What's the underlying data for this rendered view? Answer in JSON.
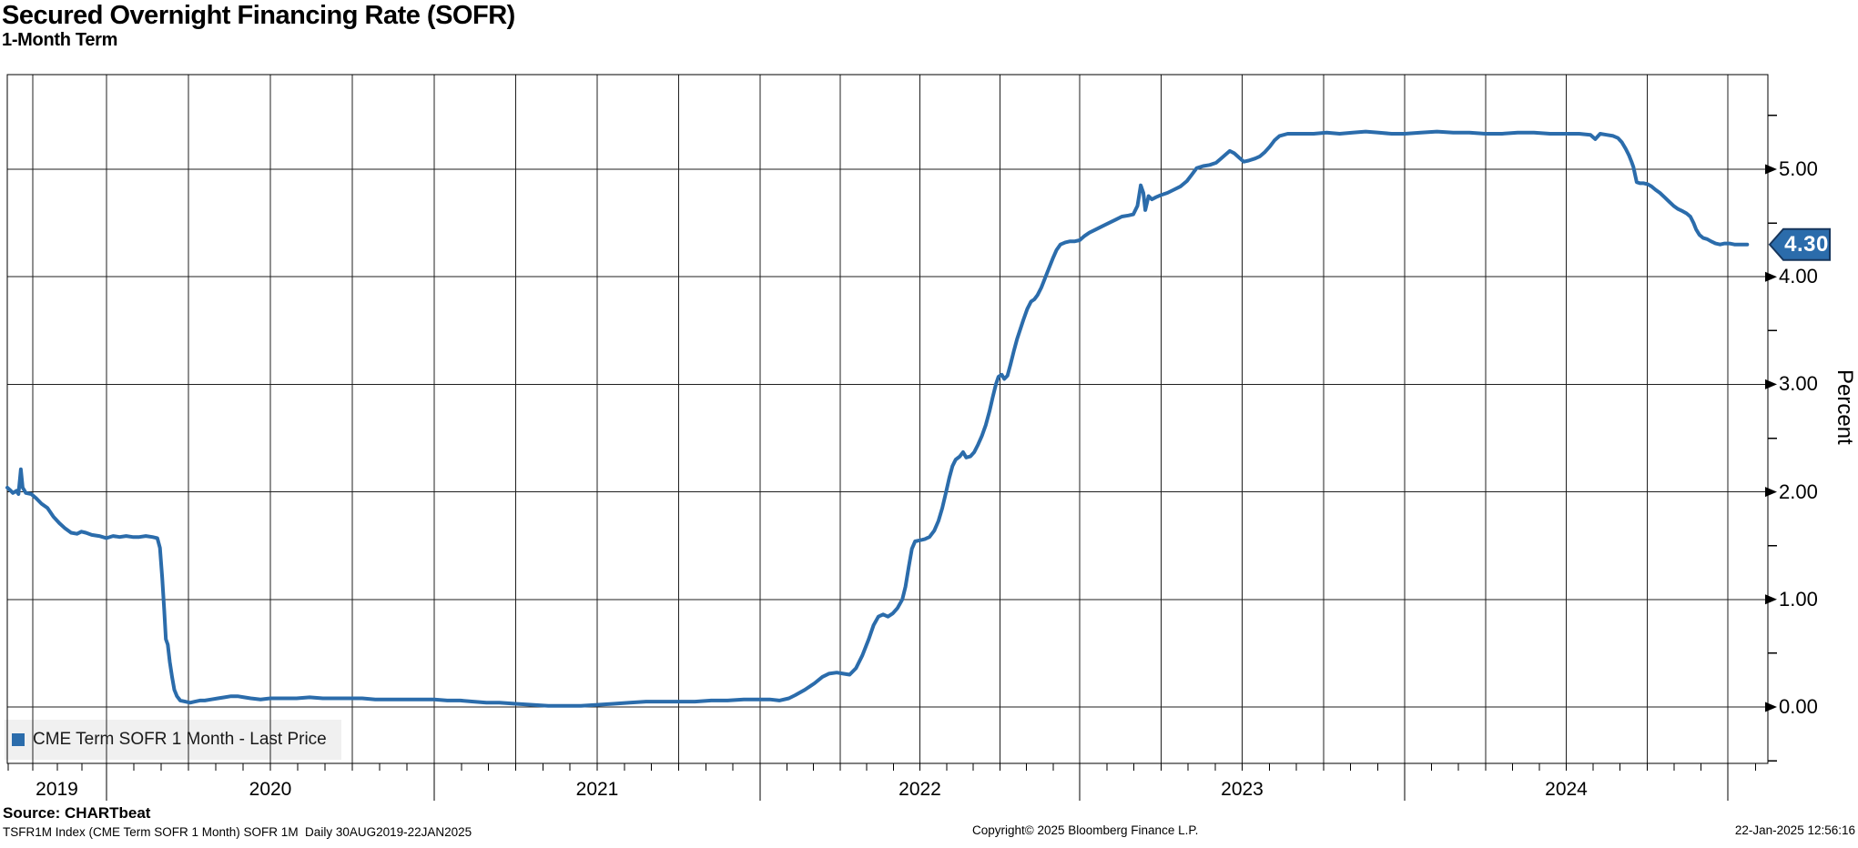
{
  "header": {
    "title": "Secured Overnight Financing Rate (SOFR)",
    "subtitle": "1-Month Term"
  },
  "legend": {
    "label": "CME Term SOFR 1 Month - Last Price"
  },
  "y_axis": {
    "title": "Percent",
    "tick_labels": [
      "5.00",
      "4.00",
      "3.00",
      "2.00",
      "1.00",
      "0.00"
    ],
    "tick_values": [
      5,
      4,
      3,
      2,
      1,
      0
    ],
    "minor_tick_values": [
      -0.5,
      0.5,
      1.5,
      2.5,
      3.5,
      4.5,
      5.5
    ]
  },
  "x_axis": {
    "year_labels": [
      "2019",
      "2020",
      "2021",
      "2022",
      "2023",
      "2024"
    ]
  },
  "last_price": {
    "label": "4.30",
    "value": 4.3
  },
  "colors": {
    "line": "#2b6cab",
    "tag_fill": "#2b6cab",
    "tag_border": "#17365c",
    "grid": "#1f1f1f",
    "frame": "#000000",
    "legend_bg": "#f0f0f0"
  },
  "footer": {
    "source": "Source: CHARTbeat",
    "ticker_line": "TSFR1M Index (CME Term SOFR 1 Month) SOFR 1M  Daily 30AUG2019-22JAN2025",
    "copyright": "Copyright© 2025 Bloomberg Finance L.P.",
    "timestamp": "22-Jan-2025 12:56:16"
  },
  "chart_data": {
    "type": "line",
    "title": "Secured Overnight Financing Rate (SOFR)",
    "subtitle": "1-Month Term",
    "xlabel": "",
    "ylabel": "Percent",
    "x_range": [
      "2019-08-30",
      "2025-01-22"
    ],
    "ylim": [
      -0.5,
      5.9
    ],
    "grid": {
      "horizontal_step": 1.0,
      "vertical": "quarterly"
    },
    "legend_position": "bottom-left",
    "last_price": 4.3,
    "series": [
      {
        "name": "CME Term SOFR 1 Month - Last Price",
        "color": "#2b6cab",
        "points": [
          [
            2019.664,
            2.04
          ],
          [
            2019.672,
            2.02
          ],
          [
            2019.683,
            1.99
          ],
          [
            2019.695,
            2.01
          ],
          [
            2019.702,
            1.98
          ],
          [
            2019.71,
            2.21
          ],
          [
            2019.716,
            2.04
          ],
          [
            2019.727,
            1.99
          ],
          [
            2019.745,
            1.98
          ],
          [
            2019.762,
            1.94
          ],
          [
            2019.78,
            1.89
          ],
          [
            2019.8,
            1.85
          ],
          [
            2019.82,
            1.77
          ],
          [
            2019.84,
            1.71
          ],
          [
            2019.86,
            1.66
          ],
          [
            2019.88,
            1.62
          ],
          [
            2019.9,
            1.61
          ],
          [
            2019.915,
            1.63
          ],
          [
            2019.93,
            1.62
          ],
          [
            2019.95,
            1.6
          ],
          [
            2019.975,
            1.59
          ],
          [
            2020.0,
            1.57
          ],
          [
            2020.02,
            1.59
          ],
          [
            2020.04,
            1.58
          ],
          [
            2020.06,
            1.59
          ],
          [
            2020.08,
            1.58
          ],
          [
            2020.1,
            1.58
          ],
          [
            2020.12,
            1.59
          ],
          [
            2020.14,
            1.58
          ],
          [
            2020.155,
            1.57
          ],
          [
            2020.163,
            1.48
          ],
          [
            2020.17,
            1.2
          ],
          [
            2020.176,
            0.9
          ],
          [
            2020.181,
            0.63
          ],
          [
            2020.187,
            0.58
          ],
          [
            2020.193,
            0.42
          ],
          [
            2020.2,
            0.28
          ],
          [
            2020.207,
            0.16
          ],
          [
            2020.215,
            0.1
          ],
          [
            2020.225,
            0.06
          ],
          [
            2020.24,
            0.05
          ],
          [
            2020.255,
            0.04
          ],
          [
            2020.27,
            0.05
          ],
          [
            2020.285,
            0.06
          ],
          [
            2020.3,
            0.06
          ],
          [
            2020.32,
            0.07
          ],
          [
            2020.34,
            0.08
          ],
          [
            2020.36,
            0.09
          ],
          [
            2020.38,
            0.1
          ],
          [
            2020.4,
            0.1
          ],
          [
            2020.42,
            0.09
          ],
          [
            2020.44,
            0.08
          ],
          [
            2020.47,
            0.07
          ],
          [
            2020.5,
            0.08
          ],
          [
            2020.54,
            0.08
          ],
          [
            2020.58,
            0.08
          ],
          [
            2020.62,
            0.09
          ],
          [
            2020.66,
            0.08
          ],
          [
            2020.7,
            0.08
          ],
          [
            2020.74,
            0.08
          ],
          [
            2020.78,
            0.08
          ],
          [
            2020.82,
            0.07
          ],
          [
            2020.86,
            0.07
          ],
          [
            2020.9,
            0.07
          ],
          [
            2020.95,
            0.07
          ],
          [
            2021.0,
            0.07
          ],
          [
            2021.04,
            0.06
          ],
          [
            2021.08,
            0.06
          ],
          [
            2021.12,
            0.05
          ],
          [
            2021.16,
            0.04
          ],
          [
            2021.2,
            0.04
          ],
          [
            2021.25,
            0.03
          ],
          [
            2021.3,
            0.02
          ],
          [
            2021.35,
            0.01
          ],
          [
            2021.4,
            0.01
          ],
          [
            2021.45,
            0.01
          ],
          [
            2021.5,
            0.02
          ],
          [
            2021.55,
            0.03
          ],
          [
            2021.6,
            0.04
          ],
          [
            2021.65,
            0.05
          ],
          [
            2021.7,
            0.05
          ],
          [
            2021.75,
            0.05
          ],
          [
            2021.8,
            0.05
          ],
          [
            2021.85,
            0.06
          ],
          [
            2021.9,
            0.06
          ],
          [
            2021.95,
            0.07
          ],
          [
            2022.0,
            0.07
          ],
          [
            2022.03,
            0.07
          ],
          [
            2022.06,
            0.06
          ],
          [
            2022.09,
            0.08
          ],
          [
            2022.11,
            0.11
          ],
          [
            2022.14,
            0.16
          ],
          [
            2022.17,
            0.22
          ],
          [
            2022.195,
            0.28
          ],
          [
            2022.215,
            0.31
          ],
          [
            2022.24,
            0.32
          ],
          [
            2022.26,
            0.31
          ],
          [
            2022.28,
            0.3
          ],
          [
            2022.3,
            0.36
          ],
          [
            2022.32,
            0.48
          ],
          [
            2022.34,
            0.63
          ],
          [
            2022.355,
            0.76
          ],
          [
            2022.37,
            0.84
          ],
          [
            2022.385,
            0.86
          ],
          [
            2022.4,
            0.84
          ],
          [
            2022.415,
            0.87
          ],
          [
            2022.43,
            0.92
          ],
          [
            2022.445,
            1.0
          ],
          [
            2022.455,
            1.12
          ],
          [
            2022.465,
            1.3
          ],
          [
            2022.475,
            1.47
          ],
          [
            2022.485,
            1.54
          ],
          [
            2022.5,
            1.55
          ],
          [
            2022.515,
            1.56
          ],
          [
            2022.53,
            1.58
          ],
          [
            2022.545,
            1.64
          ],
          [
            2022.558,
            1.73
          ],
          [
            2022.57,
            1.85
          ],
          [
            2022.582,
            2.0
          ],
          [
            2022.592,
            2.13
          ],
          [
            2022.602,
            2.24
          ],
          [
            2022.612,
            2.3
          ],
          [
            2022.625,
            2.33
          ],
          [
            2022.635,
            2.37
          ],
          [
            2022.645,
            2.32
          ],
          [
            2022.658,
            2.33
          ],
          [
            2022.67,
            2.37
          ],
          [
            2022.682,
            2.44
          ],
          [
            2022.694,
            2.52
          ],
          [
            2022.706,
            2.62
          ],
          [
            2022.718,
            2.75
          ],
          [
            2022.728,
            2.88
          ],
          [
            2022.738,
            3.0
          ],
          [
            2022.746,
            3.07
          ],
          [
            2022.756,
            3.09
          ],
          [
            2022.764,
            3.05
          ],
          [
            2022.774,
            3.08
          ],
          [
            2022.784,
            3.19
          ],
          [
            2022.794,
            3.31
          ],
          [
            2022.804,
            3.42
          ],
          [
            2022.814,
            3.51
          ],
          [
            2022.824,
            3.6
          ],
          [
            2022.836,
            3.7
          ],
          [
            2022.848,
            3.77
          ],
          [
            2022.858,
            3.79
          ],
          [
            2022.868,
            3.83
          ],
          [
            2022.88,
            3.9
          ],
          [
            2022.892,
            3.99
          ],
          [
            2022.904,
            4.08
          ],
          [
            2022.916,
            4.17
          ],
          [
            2022.928,
            4.25
          ],
          [
            2022.94,
            4.3
          ],
          [
            2022.955,
            4.32
          ],
          [
            2022.97,
            4.33
          ],
          [
            2022.985,
            4.33
          ],
          [
            2023.0,
            4.34
          ],
          [
            2023.015,
            4.38
          ],
          [
            2023.03,
            4.41
          ],
          [
            2023.05,
            4.44
          ],
          [
            2023.07,
            4.47
          ],
          [
            2023.09,
            4.5
          ],
          [
            2023.11,
            4.53
          ],
          [
            2023.13,
            4.56
          ],
          [
            2023.15,
            4.57
          ],
          [
            2023.165,
            4.58
          ],
          [
            2023.178,
            4.66
          ],
          [
            2023.188,
            4.85
          ],
          [
            2023.196,
            4.78
          ],
          [
            2023.202,
            4.62
          ],
          [
            2023.212,
            4.75
          ],
          [
            2023.222,
            4.72
          ],
          [
            2023.235,
            4.74
          ],
          [
            2023.25,
            4.76
          ],
          [
            2023.27,
            4.78
          ],
          [
            2023.29,
            4.81
          ],
          [
            2023.31,
            4.84
          ],
          [
            2023.33,
            4.89
          ],
          [
            2023.345,
            4.95
          ],
          [
            2023.36,
            5.01
          ],
          [
            2023.38,
            5.03
          ],
          [
            2023.4,
            5.04
          ],
          [
            2023.42,
            5.06
          ],
          [
            2023.435,
            5.1
          ],
          [
            2023.45,
            5.14
          ],
          [
            2023.462,
            5.17
          ],
          [
            2023.475,
            5.15
          ],
          [
            2023.49,
            5.11
          ],
          [
            2023.505,
            5.07
          ],
          [
            2023.52,
            5.08
          ],
          [
            2023.54,
            5.1
          ],
          [
            2023.555,
            5.12
          ],
          [
            2023.57,
            5.16
          ],
          [
            2023.585,
            5.21
          ],
          [
            2023.6,
            5.27
          ],
          [
            2023.615,
            5.31
          ],
          [
            2023.64,
            5.33
          ],
          [
            2023.68,
            5.33
          ],
          [
            2023.72,
            5.33
          ],
          [
            2023.76,
            5.34
          ],
          [
            2023.8,
            5.33
          ],
          [
            2023.84,
            5.34
          ],
          [
            2023.88,
            5.35
          ],
          [
            2023.92,
            5.34
          ],
          [
            2023.96,
            5.33
          ],
          [
            2024.0,
            5.33
          ],
          [
            2024.05,
            5.34
          ],
          [
            2024.1,
            5.35
          ],
          [
            2024.15,
            5.34
          ],
          [
            2024.2,
            5.34
          ],
          [
            2024.25,
            5.33
          ],
          [
            2024.3,
            5.33
          ],
          [
            2024.35,
            5.34
          ],
          [
            2024.4,
            5.34
          ],
          [
            2024.45,
            5.33
          ],
          [
            2024.5,
            5.33
          ],
          [
            2024.54,
            5.33
          ],
          [
            2024.575,
            5.32
          ],
          [
            2024.59,
            5.28
          ],
          [
            2024.605,
            5.33
          ],
          [
            2024.625,
            5.32
          ],
          [
            2024.645,
            5.31
          ],
          [
            2024.66,
            5.29
          ],
          [
            2024.672,
            5.25
          ],
          [
            2024.684,
            5.19
          ],
          [
            2024.694,
            5.13
          ],
          [
            2024.702,
            5.07
          ],
          [
            2024.708,
            5.02
          ],
          [
            2024.713,
            4.95
          ],
          [
            2024.718,
            4.88
          ],
          [
            2024.728,
            4.87
          ],
          [
            2024.74,
            4.87
          ],
          [
            2024.752,
            4.86
          ],
          [
            2024.764,
            4.84
          ],
          [
            2024.776,
            4.81
          ],
          [
            2024.79,
            4.78
          ],
          [
            2024.804,
            4.74
          ],
          [
            2024.818,
            4.7
          ],
          [
            2024.832,
            4.66
          ],
          [
            2024.846,
            4.63
          ],
          [
            2024.86,
            4.61
          ],
          [
            2024.872,
            4.59
          ],
          [
            2024.884,
            4.56
          ],
          [
            2024.894,
            4.5
          ],
          [
            2024.902,
            4.44
          ],
          [
            2024.912,
            4.39
          ],
          [
            2024.924,
            4.36
          ],
          [
            2024.936,
            4.35
          ],
          [
            2024.948,
            4.33
          ],
          [
            2024.962,
            4.31
          ],
          [
            2024.976,
            4.3
          ],
          [
            2024.99,
            4.31
          ],
          [
            2025.005,
            4.31
          ],
          [
            2025.02,
            4.3
          ],
          [
            2025.04,
            4.3
          ],
          [
            2025.058,
            4.3
          ]
        ]
      }
    ]
  }
}
